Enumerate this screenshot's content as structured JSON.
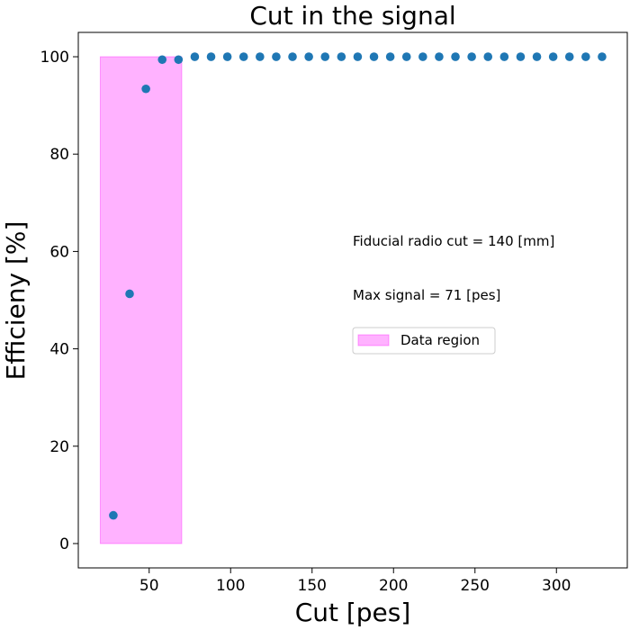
{
  "chart_data": {
    "type": "scatter",
    "title": "Cut in the signal",
    "xlabel": "Cut [pes]",
    "ylabel": "Efficieny [%]",
    "xlim": [
      6.5,
      343.5
    ],
    "ylim": [
      -5,
      105
    ],
    "xticks": [
      50,
      100,
      150,
      200,
      250,
      300
    ],
    "yticks": [
      0,
      20,
      40,
      60,
      80,
      100
    ],
    "grid": false,
    "point_color": "#1f77b4",
    "region": {
      "label": "Data region",
      "x": [
        20,
        70
      ],
      "y": [
        0,
        100
      ],
      "fill": "#ff00ff",
      "opacity": 0.3
    },
    "annotations": [
      "Fiducial radio cut = 140 [mm]",
      "Max signal = 71 [pes]"
    ],
    "legend_placement": "center-right",
    "x": [
      28,
      38,
      48,
      58,
      68,
      78,
      88,
      98,
      108,
      118,
      128,
      138,
      148,
      158,
      168,
      178,
      188,
      198,
      208,
      218,
      228,
      238,
      248,
      258,
      268,
      278,
      288,
      298,
      308,
      318,
      328
    ],
    "y": [
      5.8,
      51.3,
      93.4,
      99.4,
      99.4,
      100,
      100,
      100,
      100,
      100,
      100,
      100,
      100,
      100,
      100,
      100,
      100,
      100,
      100,
      100,
      100,
      100,
      100,
      100,
      100,
      100,
      100,
      100,
      100,
      100,
      100
    ]
  }
}
